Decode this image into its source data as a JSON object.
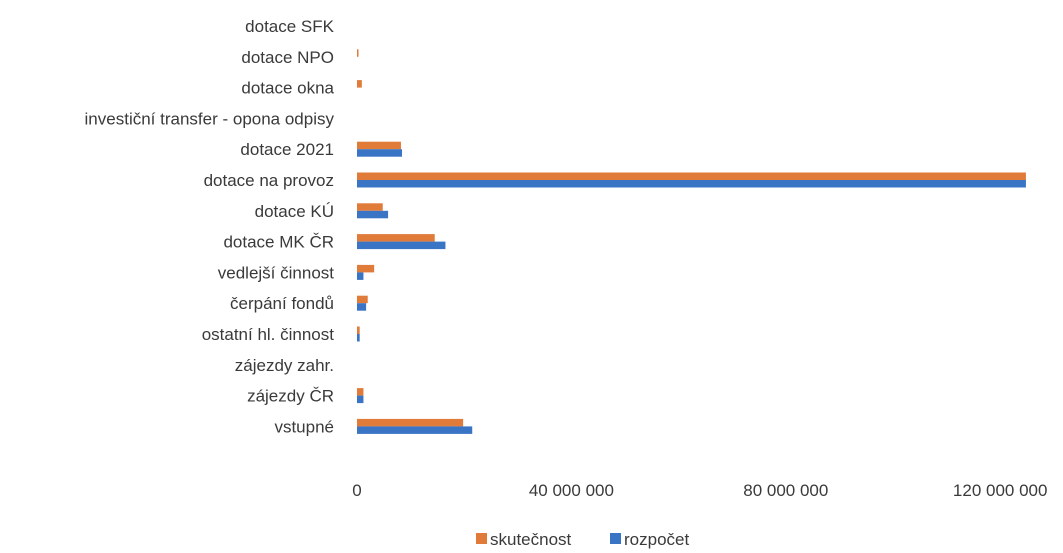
{
  "chart_data": {
    "type": "bar",
    "orientation": "horizontal",
    "categories": [
      "dotace SFK",
      "dotace NPO",
      "dotace okna",
      "investiční transfer - opona odpisy",
      "dotace 2021",
      "dotace na provoz",
      "dotace KÚ",
      "dotace MK ČR",
      "vedlejší činnost",
      "čerpání fondů",
      "ostatní hl. činnost",
      "zájezdy zahr.",
      "zájezdy ČR",
      "vstupné"
    ],
    "series": [
      {
        "name": "skutečnost",
        "color": "#e07b39",
        "values": [
          0,
          150000,
          900000,
          0,
          8200000,
          124800000,
          4800000,
          14500000,
          3200000,
          2000000,
          500000,
          0,
          1200000,
          19800000
        ]
      },
      {
        "name": "rozpočet",
        "color": "#3a74c4",
        "values": [
          0,
          0,
          0,
          0,
          8400000,
          124800000,
          5800000,
          16500000,
          1200000,
          1700000,
          500000,
          0,
          1200000,
          21500000
        ]
      }
    ],
    "xlim": [
      0,
      125000000
    ],
    "xticks": [
      0,
      40000000,
      80000000,
      120000000
    ],
    "xtick_labels": [
      "0",
      "40 000 000",
      "80 000 000",
      "120 000 000"
    ],
    "grid": false,
    "legend_position": "bottom"
  }
}
